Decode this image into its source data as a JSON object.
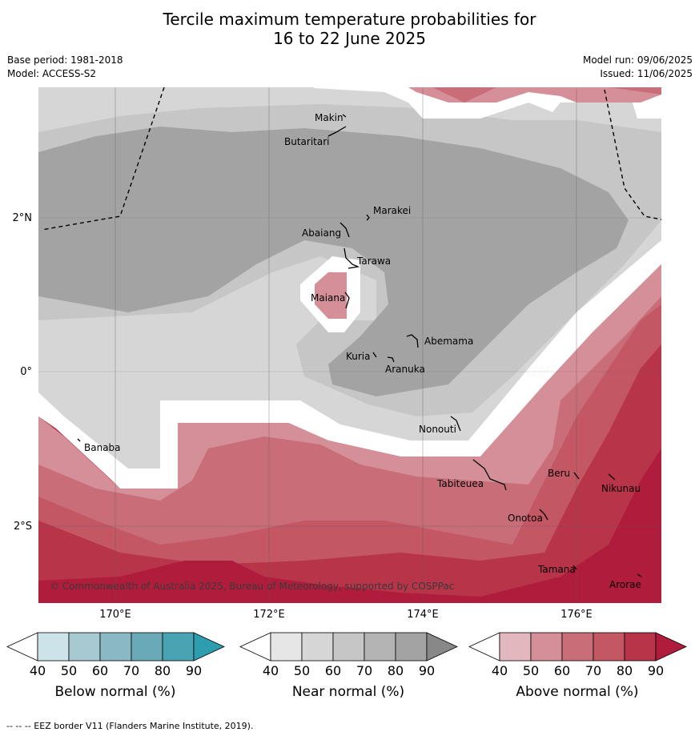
{
  "title_line1": "Tercile maximum temperature probabilities for",
  "title_line2": "16 to 22 June 2025",
  "meta": {
    "base_period": "Base period: 1981-2018",
    "model": "Model: ACCESS-S2",
    "model_run": "Model run: 09/06/2025",
    "issued": "Issued: 11/06/2025"
  },
  "axes": {
    "lat_labels": [
      "2°N",
      "0°",
      "2°S"
    ],
    "lon_labels": [
      "170°E",
      "172°E",
      "174°E",
      "176°E"
    ]
  },
  "places": [
    "Makin",
    "Butaritari",
    "Marakei",
    "Abaiang",
    "Tarawa",
    "Maiana",
    "Abemama",
    "Kuria",
    "Aranuka",
    "Nonouti",
    "Banaba",
    "Beru",
    "Tabiteuea",
    "Nikunau",
    "Onotoa",
    "Tamana",
    "Arorae"
  ],
  "copyright": "© Commonwealth of Australia 2025, Bureau of Meteorology, supported by COSPPac",
  "colorbars": [
    {
      "title": "Below normal (%)",
      "ticks": [
        "40",
        "50",
        "60",
        "70",
        "80",
        "90"
      ],
      "colors": [
        "#ffffff",
        "#cce3ea",
        "#a7c9d1",
        "#8ab8c4",
        "#6aa9b8",
        "#4aa3b3",
        "#2e9db0"
      ]
    },
    {
      "title": "Near normal (%)",
      "ticks": [
        "40",
        "50",
        "60",
        "70",
        "80",
        "90"
      ],
      "colors": [
        "#ffffff",
        "#e6e6e6",
        "#d6d6d6",
        "#c6c6c6",
        "#b4b4b4",
        "#a3a3a3",
        "#888888"
      ]
    },
    {
      "title": "Above normal (%)",
      "ticks": [
        "40",
        "50",
        "60",
        "70",
        "80",
        "90"
      ],
      "colors": [
        "#ffffff",
        "#e2b8be",
        "#d48f98",
        "#c96e78",
        "#c35864",
        "#b83448",
        "#b01c3c"
      ]
    }
  ],
  "footer": "--  --  -- EEZ border V11 (Flanders Marine Institute, 2019)."
}
